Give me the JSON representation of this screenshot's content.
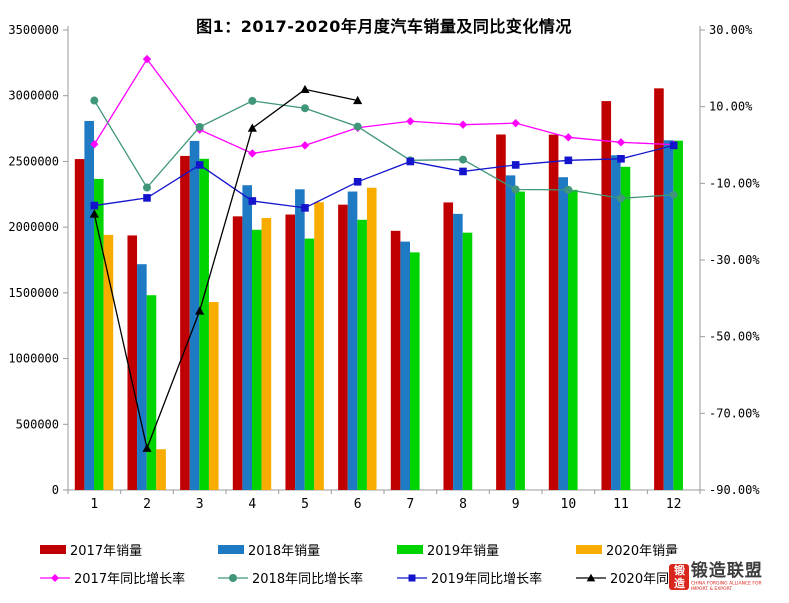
{
  "title": "图1：2017-2020年月度汽车销量及同比变化情况",
  "chart_data": {
    "type": "bar+line",
    "title": "图1：2017-2020年月度汽车销量及同比变化情况",
    "categories": [
      "1",
      "2",
      "3",
      "4",
      "5",
      "6",
      "7",
      "8",
      "9",
      "10",
      "11",
      "12"
    ],
    "xlabel": "",
    "left_axis": {
      "ylabel": "",
      "ylim": [
        0,
        3500000
      ],
      "tick_values": [
        3500000,
        3000000,
        2500000,
        2000000,
        1500000,
        1000000,
        500000,
        0
      ],
      "tick_labels": [
        "3500000",
        "3000000",
        "2500000",
        "2000000",
        "1500000",
        "1000000",
        "500000",
        "0"
      ]
    },
    "right_axis": {
      "ylabel": "",
      "ylim": [
        -90,
        30
      ],
      "tick_values": [
        30,
        10,
        -10,
        -30,
        -50,
        -70,
        -90
      ],
      "tick_labels": [
        "30.00%",
        "10.00%",
        "-10.00%",
        "-30.00%",
        "-50.00%",
        "-70.00%",
        "-90.00%"
      ]
    },
    "grid": false,
    "legend_position": "bottom",
    "bar_series": [
      {
        "name": "2017年销量",
        "color": "#c00000",
        "values": [
          2518000,
          1937000,
          2542000,
          2082000,
          2096000,
          2171000,
          1972000,
          2188000,
          2705000,
          2704000,
          2959000,
          3056000
        ]
      },
      {
        "name": "2018年销量",
        "color": "#1f7ac4",
        "values": [
          2808000,
          1718000,
          2656000,
          2319000,
          2288000,
          2271000,
          1890000,
          2101000,
          2394000,
          2380000,
          2547000,
          2661000
        ]
      },
      {
        "name": "2019年销量",
        "color": "#00d400",
        "values": [
          2367000,
          1482000,
          2520000,
          1980000,
          1913000,
          2056000,
          1808000,
          1958000,
          2271000,
          2284000,
          2459000,
          2658000
        ]
      },
      {
        "name": "2020年销量",
        "color": "#f8ac00",
        "values": [
          1941000,
          310000,
          1430000,
          2070000,
          2190000,
          2300000,
          null,
          null,
          null,
          null,
          null,
          null
        ]
      }
    ],
    "line_series": [
      {
        "name": "2017年同比增长率",
        "color": "#ff00ff",
        "marker": "diamond",
        "values": [
          0.2,
          22.4,
          4.0,
          -2.2,
          -0.1,
          4.5,
          6.2,
          5.3,
          5.7,
          2.0,
          0.7,
          0.1
        ]
      },
      {
        "name": "2018年同比增长率",
        "color": "#3f9679",
        "marker": "circle",
        "values": [
          11.6,
          -11.1,
          4.7,
          11.5,
          9.6,
          4.8,
          -4.0,
          -3.8,
          -11.6,
          -11.7,
          -13.9,
          -13.0
        ]
      },
      {
        "name": "2019年同比增长率",
        "color": "#1414cc",
        "marker": "square",
        "values": [
          -15.8,
          -13.8,
          -5.2,
          -14.6,
          -16.4,
          -9.6,
          -4.3,
          -6.9,
          -5.2,
          -4.0,
          -3.6,
          -0.1
        ]
      },
      {
        "name": "2020年同比增长率",
        "color": "#000000",
        "marker": "triangle",
        "values": [
          -18.0,
          -79.1,
          -43.3,
          4.4,
          14.5,
          11.6,
          null,
          null,
          null,
          null,
          null,
          null
        ]
      }
    ]
  },
  "legend": {
    "row1": [
      "2017年销量",
      "2018年销量",
      "2019年销量",
      "2020年销量"
    ],
    "row2": [
      "2017年同比增长率",
      "2018年同比增长率",
      "2019年同比增长率",
      "2020年同比增长率"
    ]
  },
  "logo": {
    "seal": "锻造",
    "text": "锻造联盟",
    "subtext": "CHINA FORGING ALLIANCE FOR IMPORT & EXPORT",
    "accent_color": "#d9261c"
  },
  "colors": {
    "axis": "#9b9b9b",
    "background": "#ffffff",
    "text": "#000000"
  }
}
